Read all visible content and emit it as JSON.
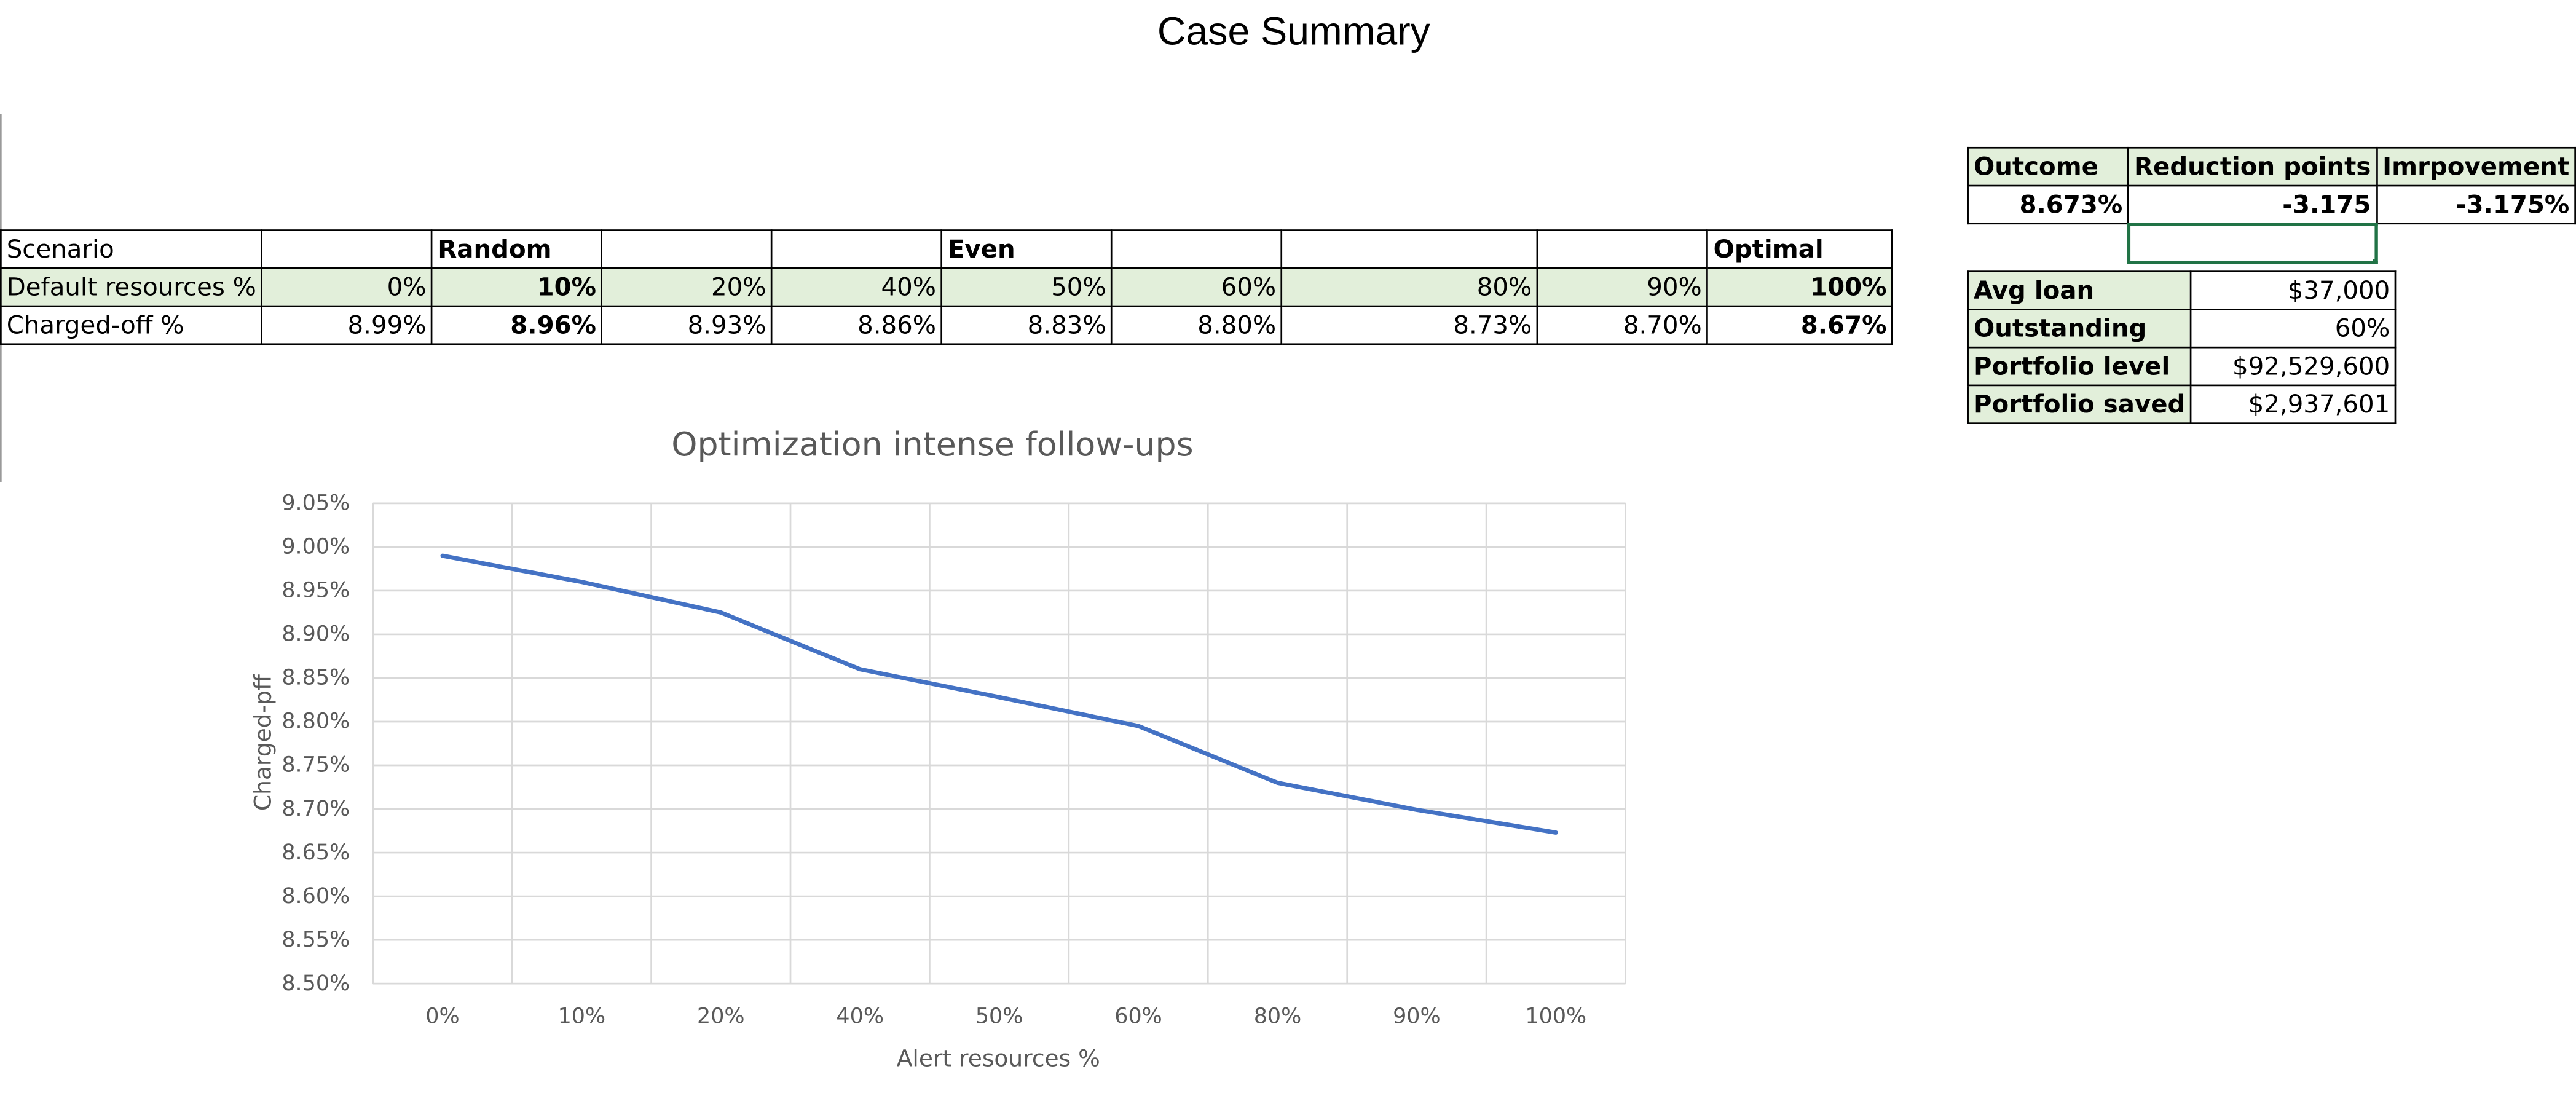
{
  "page": {
    "title": "Case Summary"
  },
  "scenario_table": {
    "rows": [
      [
        "Scenario",
        "",
        "Random",
        "",
        "",
        "Even",
        "",
        "",
        "",
        "Optimal"
      ],
      [
        "Default resources %",
        "0%",
        "10%",
        "20%",
        "40%",
        "50%",
        "60%",
        "80%",
        "90%",
        "100%"
      ],
      [
        "Charged-off %",
        "8.99%",
        "8.96%",
        "8.93%",
        "8.86%",
        "8.83%",
        "8.80%",
        "8.73%",
        "8.70%",
        "8.67%"
      ]
    ]
  },
  "outcome_table": {
    "headers": [
      "Outcome",
      "Reduction points",
      "Imrpovement"
    ],
    "values": [
      "8.673%",
      "-3.175",
      "-3.175%"
    ]
  },
  "loan_table": {
    "rows": [
      {
        "label": "Avg loan",
        "value": "$37,000"
      },
      {
        "label": "Outstanding",
        "value": "60%"
      },
      {
        "label": "Portfolio level",
        "value": "$92,529,600"
      },
      {
        "label": "Portfolio saved",
        "value": "$2,937,601"
      }
    ]
  },
  "chart_data": {
    "type": "line",
    "title": "Optimization intense follow-ups",
    "xlabel": "Alert resources %",
    "ylabel": "Charged-pff",
    "categories": [
      "0%",
      "10%",
      "20%",
      "40%",
      "50%",
      "60%",
      "80%",
      "90%",
      "100%"
    ],
    "series": [
      {
        "values": [
          8.99,
          8.96,
          8.925,
          8.86,
          8.828,
          8.795,
          8.73,
          8.699,
          8.673
        ],
        "color": "#4472c4"
      }
    ],
    "ylim": [
      8.5,
      9.05
    ],
    "ytick_step": 0.05,
    "ytick_format": "percent-2dp",
    "grid": true,
    "legend": "none"
  }
}
